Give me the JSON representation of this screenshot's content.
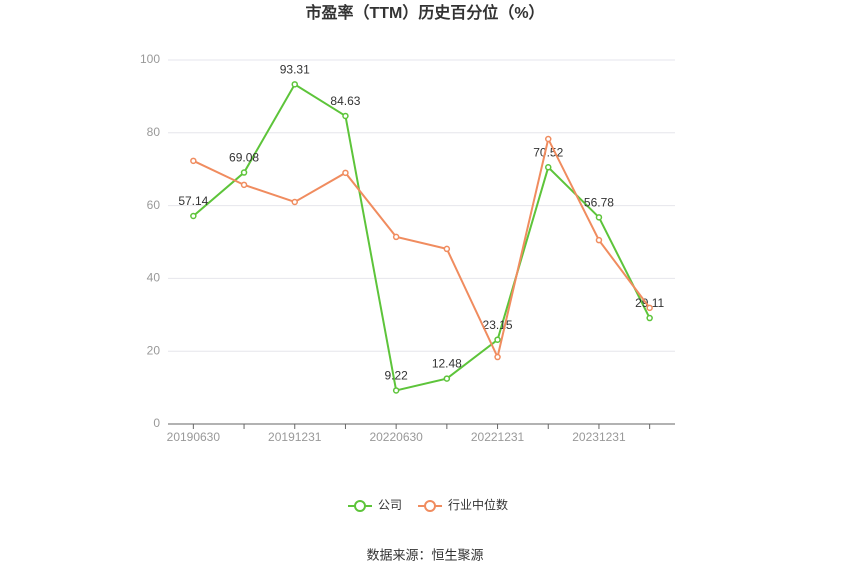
{
  "chart_data": {
    "type": "line",
    "title": "市盈率（TTM）历史百分位（%）",
    "categories": [
      "20190630",
      null,
      "20191231",
      null,
      "20220630",
      null,
      "20221231",
      null,
      "20231231",
      null
    ],
    "series": [
      {
        "name": "公司",
        "color": "#5dc43a",
        "values": [
          57.14,
          69.08,
          93.31,
          84.63,
          9.22,
          12.48,
          23.15,
          70.52,
          56.78,
          29.11
        ],
        "data_labels": true
      },
      {
        "name": "行业中位数",
        "color": "#f08c5f",
        "values": [
          72.3,
          65.7,
          61.0,
          69.0,
          51.4,
          48.1,
          18.4,
          78.3,
          50.5,
          31.9
        ],
        "data_labels": false
      }
    ],
    "ylim": [
      0,
      100
    ],
    "yticks": [
      0,
      20,
      40,
      60,
      80,
      100
    ],
    "grid": true,
    "legend": "bottom",
    "source": "数据来源：恒生聚源"
  }
}
